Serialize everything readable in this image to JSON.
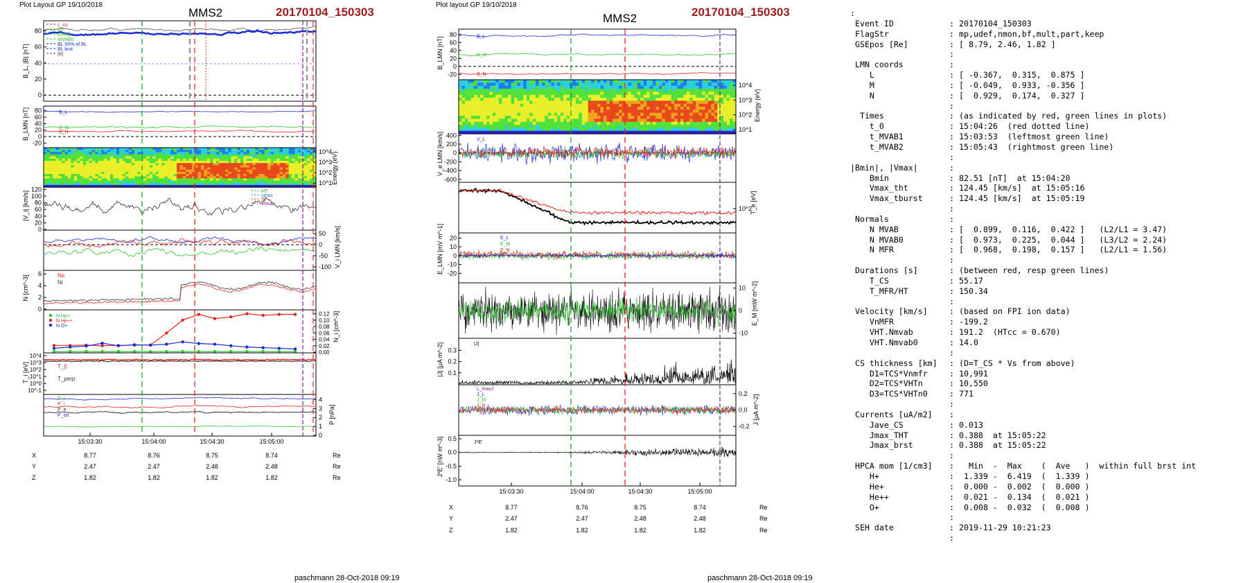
{
  "left": {
    "header": "Plot Layout GP 19/10/2018",
    "spacecraft": "MMS2",
    "event": "20170104_150303",
    "footer": "paschmann 28-Oct-2018 09:19"
  },
  "right": {
    "header": "Plot layout GP 19/10/2018",
    "spacecraft": "MMS2",
    "event": "20170104_150303",
    "footer": "paschmann 28-Oct-2018 09:19"
  },
  "time_ticks": [
    "15:03:30",
    "15:04:00",
    "15:04:30",
    "15:05:00"
  ],
  "position_table": {
    "rows": [
      {
        "label": "X",
        "values": [
          "8.77",
          "8.76",
          "8.75",
          "8.74"
        ],
        "unit": "Re"
      },
      {
        "label": "Y",
        "values": [
          "2.47",
          "2.47",
          "2.48",
          "2.48"
        ],
        "unit": "Re"
      },
      {
        "label": "Z",
        "values": [
          "1.82",
          "1.82",
          "1.82",
          "1.82"
        ],
        "unit": "Re"
      }
    ],
    "right_rows": [
      {
        "label": "X",
        "values": [
          "8.77",
          "8.76",
          "8.75",
          "8.74"
        ],
        "unit": "Re"
      },
      {
        "label": "Y",
        "values": [
          "2.47",
          "2.47",
          "2.48",
          "2.48"
        ],
        "unit": "Re"
      },
      {
        "label": "Z",
        "values": [
          "1.82",
          "1.82",
          "1.82",
          "1.82"
        ],
        "unit": "Re"
      }
    ]
  },
  "colors": {
    "red_line": "#e8221c",
    "green_line": "#1fa32a",
    "purple_line": "#7b1f8e",
    "blue": "#1a2bd8",
    "red": "#e8221c",
    "green": "#2ec52e",
    "black": "#000000",
    "title_red": "#9b1c1c"
  },
  "chart_data": [
    {
      "type": "line",
      "panel": "left-1",
      "ylabel": "B_L, |B| [nT]",
      "ylim": [
        -5,
        90
      ],
      "yticks": [
        "80",
        "60",
        "40",
        "20",
        "0"
      ],
      "legend": [
        "L_cs",
        "HT",
        "MVAB",
        "MVAB0",
        "BL 50% of BL",
        "BL brst",
        "|B|"
      ],
      "series": [
        {
          "name": "|B|",
          "color": "black",
          "level": 82,
          "noise": 2
        },
        {
          "name": "BL",
          "color": "blue",
          "level": 77,
          "noise": 2
        }
      ]
    },
    {
      "type": "line",
      "panel": "left-2",
      "ylabel": "B_LMN [nT]",
      "ylim": [
        -30,
        90
      ],
      "yticks": [
        "80",
        "60",
        "40",
        "20",
        "0",
        "-20"
      ],
      "legend": [
        "B_L",
        "B_M",
        "B_N"
      ],
      "series": [
        {
          "name": "B_L",
          "color": "blue",
          "level": 77,
          "noise": 2
        },
        {
          "name": "B_M",
          "color": "green",
          "level": 30,
          "noise": 3
        },
        {
          "name": "B_N",
          "color": "red",
          "level": 16,
          "noise": 2
        }
      ]
    },
    {
      "type": "heatmap",
      "panel": "left-3",
      "ylabel": "Energy (eV)",
      "yticks": [
        "10^4",
        "10^3",
        "10^2",
        "10^1"
      ]
    },
    {
      "type": "line",
      "panel": "left-4",
      "ylabel": "|V_i| [km/s]",
      "ylim": [
        0,
        125
      ],
      "yticks": [
        "120",
        "100",
        "80",
        "60",
        "40",
        "20",
        "0"
      ],
      "legend": [
        "HT",
        "vmax",
        "SI",
        "VImax"
      ],
      "series": [
        {
          "name": "|Vi|",
          "color": "black",
          "level": 75,
          "noise": 18
        }
      ]
    },
    {
      "type": "line",
      "panel": "left-5",
      "ylabel": "V_i LMN [km/s]",
      "ylim": [
        -110,
        60
      ],
      "yticks": [
        "50",
        "0",
        "-50",
        "-100"
      ],
      "series": [
        {
          "name": "Vi_L",
          "color": "blue",
          "level": 20,
          "noise": 12
        },
        {
          "name": "Vi_M",
          "color": "red",
          "level": 5,
          "noise": 14
        },
        {
          "name": "Vi_N",
          "color": "green",
          "level": -30,
          "noise": 15
        }
      ]
    },
    {
      "type": "line",
      "panel": "left-6",
      "ylabel": "N [cm^-3]",
      "ylim": [
        0,
        6.5
      ],
      "yticks": [
        "6",
        "4",
        "2",
        "0"
      ],
      "legend": [
        "Ne",
        "Ni"
      ],
      "series": [
        {
          "name": "Ne",
          "color": "red",
          "level": 1.8,
          "noise": 0.3
        },
        {
          "name": "Ni",
          "color": "black",
          "level": 2.2,
          "noise": 0.3
        }
      ]
    },
    {
      "type": "line",
      "panel": "left-7",
      "ylabel": "N_i [cm^-3]",
      "ylim": [
        0,
        0.13
      ],
      "yticks": [
        "0.12",
        "0.10",
        "0.08",
        "0.06",
        "0.04",
        "0.02",
        "0.00"
      ],
      "legend": [
        "N He+",
        "N He++",
        "N O+"
      ],
      "series": [
        {
          "name": "N He+",
          "color": "green",
          "values": [
            0.002,
            0.002,
            0.002,
            0.002,
            0.002,
            0.002,
            0.002,
            0.002,
            0.002,
            0.002,
            0.002,
            0.002,
            0.002,
            0.002,
            0.002,
            0.002
          ]
        },
        {
          "name": "N He++",
          "color": "red",
          "values": [
            0.021,
            0.021,
            0.022,
            0.02,
            0.021,
            0.022,
            0.022,
            0.06,
            0.1,
            0.118,
            0.105,
            0.11,
            0.12,
            0.115,
            0.118,
            0.118
          ]
        },
        {
          "name": "N O+",
          "color": "blue",
          "values": [
            0.012,
            0.016,
            0.019,
            0.028,
            0.02,
            0.023,
            0.022,
            0.025,
            0.032,
            0.027,
            0.025,
            0.02,
            0.016,
            0.014,
            0.012,
            0.01
          ]
        }
      ]
    },
    {
      "type": "line",
      "panel": "left-8",
      "ylabel": "T_i [eV]",
      "yticks": [
        "10^4",
        "10^3",
        "10^2",
        "10^1",
        "10^0",
        "10^-1"
      ],
      "legend": [
        "T_||",
        "T_perp"
      ]
    },
    {
      "type": "line",
      "panel": "left-9",
      "ylabel": "P [nPa]",
      "ylim": [
        0,
        4.5
      ],
      "yticks": [
        "4",
        "3",
        "2",
        "1",
        "0"
      ],
      "legend": [
        "P_t",
        "P_i",
        "P_e",
        "P_tot"
      ],
      "series": [
        {
          "name": "P_t",
          "color": "blue",
          "level": 4.1,
          "noise": 0.1
        },
        {
          "name": "P_i",
          "color": "red",
          "level": 3.2,
          "noise": 0.1
        },
        {
          "name": "P_e",
          "color": "black",
          "level": 2.6,
          "noise": 0.1
        },
        {
          "name": "P_tot",
          "color": "green",
          "level": 1.0,
          "noise": 0.05
        }
      ]
    },
    {
      "type": "line",
      "panel": "right-1",
      "ylabel": "B_LMN [nT]",
      "ylim": [
        -30,
        90
      ],
      "yticks": [
        "80",
        "60",
        "40",
        "20",
        "0",
        "-20"
      ],
      "legend": [
        "B_L",
        "B_M",
        "B_N"
      ]
    },
    {
      "type": "heatmap",
      "panel": "right-2",
      "ylabel": "Energy (eV)",
      "yticks": [
        "10^4",
        "10^3",
        "10^2",
        "10^1"
      ]
    },
    {
      "type": "line",
      "panel": "right-3",
      "ylabel": "V_e LMN [km/s]",
      "ylim": [
        -650,
        420
      ],
      "yticks": [
        "400",
        "200",
        "0",
        "-200",
        "-400",
        "-600"
      ],
      "legend": [
        "V_L"
      ]
    },
    {
      "type": "line",
      "panel": "right-4",
      "ylabel": "T_e [eV]",
      "yticks": [
        "10^2"
      ]
    },
    {
      "type": "line",
      "panel": "right-5",
      "ylabel": "E_LMN [mV m^-1]",
      "ylim": [
        -30,
        25
      ],
      "yticks": [
        "20",
        "10",
        "0",
        "-10",
        "-20"
      ],
      "legend": [
        "E_L",
        "E_M",
        "E_N"
      ]
    },
    {
      "type": "line",
      "panel": "right-6",
      "ylabel": "E_M [mW m^-2]",
      "ylim": [
        -12,
        12
      ],
      "yticks": [
        "10",
        "0",
        "-10"
      ]
    },
    {
      "type": "line",
      "panel": "right-7",
      "ylabel": "|J| [μA m^-2]",
      "ylim": [
        0,
        0.4
      ],
      "yticks": [
        "0.3",
        "0.2",
        "0.1"
      ],
      "legend": [
        "|J|"
      ]
    },
    {
      "type": "line",
      "panel": "right-8",
      "ylabel": "J [μA m^-2]",
      "ylim": [
        -0.3,
        0.3
      ],
      "yticks": [
        "0.2",
        "0.0",
        "-0.2"
      ],
      "legend": [
        "L_maxJ",
        "J_L",
        "J_M",
        "J_N"
      ]
    },
    {
      "type": "line",
      "panel": "right-9",
      "ylabel": "J*E' [nW m^-3]",
      "ylim": [
        -1.2,
        0.6
      ],
      "yticks": [
        "0.5",
        "0.0",
        "-0.5",
        "-1.0"
      ],
      "legend": [
        "J*E'"
      ]
    }
  ],
  "info": {
    "lines": [
      {
        "label": ":",
        "colon": "",
        "value": ""
      },
      {
        "label": " Event ID",
        "colon": ":",
        "value": "20170104_150303"
      },
      {
        "label": " FlagStr",
        "colon": ":",
        "value": "mp,udef,nmon,bf,mult,part,keep"
      },
      {
        "label": " GSEpos [Re]",
        "colon": ":",
        "value": "[ 8.79, 2.46, 1.82 ]"
      },
      {
        "label": "",
        "colon": ":",
        "value": ""
      },
      {
        "label": " LMN coords",
        "colon": ":",
        "value": ""
      },
      {
        "label": "    L",
        "colon": ":",
        "value": "[ -0.367,  0.315,  0.875 ]"
      },
      {
        "label": "    M",
        "colon": ":",
        "value": "[ -0.049,  0.933, -0.356 ]"
      },
      {
        "label": "    N",
        "colon": ":",
        "value": "[  0.929,  0.174,  0.327 ]"
      },
      {
        "label": "",
        "colon": ":",
        "value": ""
      },
      {
        "label": "  Times",
        "colon": ":",
        "value": "(as indicated by red, green lines in plots)"
      },
      {
        "label": "    t_0",
        "colon": ":",
        "value": "15:04:26  (red dotted line)"
      },
      {
        "label": "    t_MVAB1",
        "colon": ":",
        "value": "15:03:53  (leftmost green line)"
      },
      {
        "label": "    t_MVAB2",
        "colon": ":",
        "value": "15:05:43  (rightmost green line)"
      },
      {
        "label": "",
        "colon": ":",
        "value": ""
      },
      {
        "label": "|Bmin|, |Vmax|",
        "colon": ":",
        "value": ""
      },
      {
        "label": "    Bmin",
        "colon": ":",
        "value": "82.51 [nT]  at 15:04:20"
      },
      {
        "label": "    Vmax_tht",
        "colon": ":",
        "value": "124.45 [km/s]  at 15:05:16"
      },
      {
        "label": "    Vmax_tburst",
        "colon": ":",
        "value": "124.45 [km/s]  at 15:05:19"
      },
      {
        "label": "",
        "colon": ":",
        "value": ""
      },
      {
        "label": " Normals",
        "colon": ":",
        "value": ""
      },
      {
        "label": "    N MVAB",
        "colon": ":",
        "value": "[  0.899,  0.116,  0.422 ]   (L2/L1 = 3.47)"
      },
      {
        "label": "    N MVAB0",
        "colon": ":",
        "value": "[  0.973,  0.225,  0.044 ]   (L3/L2 = 2.24)"
      },
      {
        "label": "    N MFR",
        "colon": ":",
        "value": "[  0.968,  0.198,  0.157 ]   (L2/L1 = 1.56)"
      },
      {
        "label": "",
        "colon": ":",
        "value": ""
      },
      {
        "label": " Durations [s]",
        "colon": ":",
        "value": "(between red, resp green lines)"
      },
      {
        "label": "    T_CS",
        "colon": ":",
        "value": "55.17"
      },
      {
        "label": "    T_MFR/HT",
        "colon": ":",
        "value": "150.34"
      },
      {
        "label": "",
        "colon": ":",
        "value": ""
      },
      {
        "label": " Velocity [km/s]",
        "colon": ":",
        "value": "(based on FPI ion data)"
      },
      {
        "label": "    VnMFR",
        "colon": ":",
        "value": "-199.2"
      },
      {
        "label": "    VHT.Nmvab",
        "colon": ":",
        "value": "191.2  (HTcc = 0.670)"
      },
      {
        "label": "    VHT.Nmvab0",
        "colon": ":",
        "value": "14.0"
      },
      {
        "label": "",
        "colon": ":",
        "value": ""
      },
      {
        "label": " CS thickness [km]",
        "colon": ":",
        "value": "(D=T_CS * Vs from above)"
      },
      {
        "label": "    D1=TCS*Vnmfr",
        "colon": ":",
        "value": "10,991"
      },
      {
        "label": "    D2=TCS*VHTn",
        "colon": ":",
        "value": "10,550"
      },
      {
        "label": "    D3=TCS*VHTn0",
        "colon": ":",
        "value": "771"
      },
      {
        "label": "",
        "colon": ":",
        "value": ""
      },
      {
        "label": " Currents [uA/m2]",
        "colon": ":",
        "value": ""
      },
      {
        "label": "    Jave_CS",
        "colon": ":",
        "value": "0.013"
      },
      {
        "label": "    Jmax_THT",
        "colon": ":",
        "value": "0.388  at 15:05:22"
      },
      {
        "label": "    Jmax_brst",
        "colon": ":",
        "value": "0.388  at 15:05:22"
      },
      {
        "label": "",
        "colon": ":",
        "value": ""
      },
      {
        "label": " HPCA mom [1/cm3]",
        "colon": ":",
        "value": "  Min  -  Max    (  Ave   )  within full brst int"
      },
      {
        "label": "    H+",
        "colon": ":",
        "value": " 1.339 -  6.419  (  1.339 )"
      },
      {
        "label": "    He+",
        "colon": ":",
        "value": " 0.000 -  0.002  (  0.000 )"
      },
      {
        "label": "    He++",
        "colon": ":",
        "value": " 0.021 -  0.134  (  0.021 )"
      },
      {
        "label": "    O+",
        "colon": ":",
        "value": " 0.008 -  0.032  (  0.008 )"
      },
      {
        "label": "",
        "colon": ":",
        "value": ""
      },
      {
        "label": " SEH date",
        "colon": ":",
        "value": "2019-11-29 10:21:23"
      },
      {
        "label": "",
        "colon": ":",
        "value": ""
      }
    ]
  }
}
